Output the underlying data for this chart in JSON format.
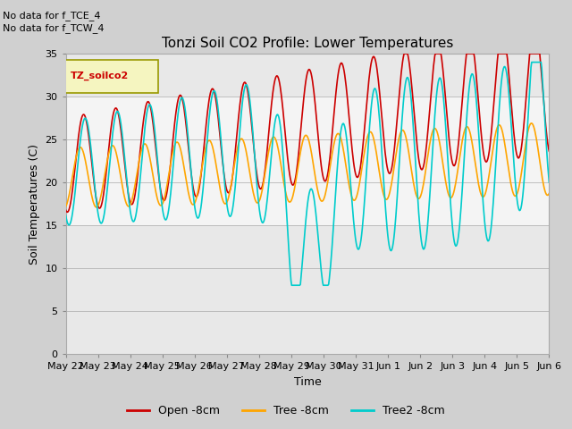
{
  "title": "Tonzi Soil CO2 Profile: Lower Temperatures",
  "ylabel": "Soil Temperatures (C)",
  "xlabel": "Time",
  "annotation1": "No data for f_TCE_4",
  "annotation2": "No data for f_TCW_4",
  "legend_box_label": "TZ_soilco2",
  "ylim": [
    0,
    35
  ],
  "yticks": [
    0,
    5,
    10,
    15,
    20,
    25,
    30,
    35
  ],
  "shaded_band_low": 15,
  "shaded_band_high": 30,
  "fig_bg_color": "#d0d0d0",
  "plot_bg_color": "#e8e8e8",
  "line_colors": {
    "open": "#cc0000",
    "tree": "#ffa500",
    "tree2": "#00cccc"
  },
  "legend_labels": [
    "Open -8cm",
    "Tree -8cm",
    "Tree2 -8cm"
  ],
  "x_tick_labels": [
    "May 22",
    "May 23",
    "May 24",
    "May 25",
    "May 26",
    "May 27",
    "May 28",
    "May 29",
    "May 30",
    "May 31",
    "Jun 1",
    "Jun 2",
    "Jun 3",
    "Jun 4",
    "Jun 5",
    "Jun 6"
  ],
  "num_days": 15
}
